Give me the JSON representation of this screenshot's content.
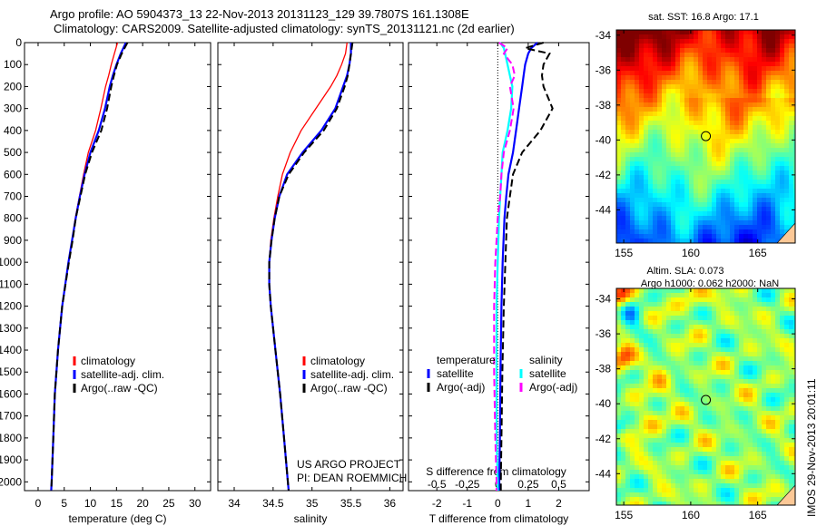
{
  "title_line1": "Argo profile: AO 5904373_13 22-Nov-2013 20131123_129 39.7807S 161.1308E",
  "title_line2": "Climatology: CARS2009. Satellite-adjusted climatology: synTS_20131121.nc (2d earlier)",
  "credit_line1": "US ARGO PROJECT",
  "credit_line2": "PI: DEAN ROEMMICH",
  "imos_stamp": "IMOS 29-Nov-2013 20:01:11",
  "colors": {
    "climatology": "#ff0000",
    "satellite": "#0000ff",
    "argo": "#000000",
    "s_satellite": "#00ffff",
    "s_argo": "#ff00ff",
    "land": "#fcc896"
  },
  "chart_data": [
    {
      "type": "line",
      "name": "temperature",
      "xlabel": "temperature (deg C)",
      "ylabel": "",
      "xlim": [
        -2.6,
        33
      ],
      "ylim": [
        2040,
        0
      ],
      "xticks": [
        "0",
        "5",
        "10",
        "15",
        "20",
        "25",
        "30"
      ],
      "yticks": [
        "0",
        "100",
        "200",
        "300",
        "400",
        "500",
        "600",
        "700",
        "800",
        "900",
        "1000",
        "1100",
        "1200",
        "1300",
        "1400",
        "1500",
        "1600",
        "1700",
        "1800",
        "1900",
        "2000"
      ],
      "legend": [
        "climatology",
        "satellite-adj. clim.",
        "Argo(..raw -QC)"
      ],
      "depth": [
        0,
        50,
        100,
        150,
        200,
        300,
        400,
        500,
        600,
        700,
        800,
        900,
        1000,
        1200,
        1400,
        1600,
        1800,
        2000,
        2040
      ],
      "series": [
        {
          "name": "climatology",
          "values": [
            15.2,
            14.6,
            14.0,
            13.5,
            12.9,
            12.0,
            11.0,
            9.6,
            8.7,
            7.9,
            7.1,
            6.5,
            5.8,
            4.6,
            3.8,
            3.2,
            2.9,
            2.6,
            2.5
          ]
        },
        {
          "name": "satellite-adj. clim.",
          "values": [
            16.8,
            15.8,
            15.0,
            14.3,
            13.7,
            12.8,
            11.6,
            10.0,
            8.9,
            8.0,
            7.2,
            6.5,
            5.8,
            4.6,
            3.8,
            3.2,
            2.9,
            2.6,
            2.5
          ]
        },
        {
          "name": "Argo(..raw -QC)",
          "values": [
            17.1,
            16.0,
            15.1,
            14.5,
            14.0,
            13.2,
            12.1,
            10.3,
            9.0,
            8.1,
            7.2,
            6.6,
            5.9,
            4.6,
            3.8,
            3.2,
            2.9,
            2.6,
            2.5
          ]
        }
      ]
    },
    {
      "type": "line",
      "name": "salinity",
      "xlabel": "salinity",
      "ylabel": "",
      "xlim": [
        33.79,
        36.17
      ],
      "ylim": [
        2040,
        0
      ],
      "xticks": [
        "34",
        "34.5",
        "35",
        "35.5",
        "36"
      ],
      "legend": [
        "climatology",
        "satellite-adj. clim.",
        "Argo(..raw -QC)"
      ],
      "depth": [
        0,
        50,
        100,
        150,
        200,
        300,
        400,
        500,
        600,
        700,
        800,
        900,
        1000,
        1100,
        1200,
        1400,
        1600,
        1800,
        2000,
        2040
      ],
      "series": [
        {
          "name": "climatology",
          "values": [
            35.45,
            35.43,
            35.38,
            35.32,
            35.24,
            35.05,
            34.86,
            34.72,
            34.62,
            34.56,
            34.51,
            34.47,
            34.45,
            34.45,
            34.47,
            34.53,
            34.59,
            34.64,
            34.69,
            34.7
          ]
        },
        {
          "name": "satellite-adj. clim.",
          "values": [
            35.5,
            35.5,
            35.48,
            35.45,
            35.4,
            35.3,
            35.12,
            34.88,
            34.68,
            34.58,
            34.52,
            34.48,
            34.45,
            34.45,
            34.47,
            34.53,
            34.59,
            34.64,
            34.69,
            34.7
          ]
        },
        {
          "name": "Argo(..raw -QC)",
          "values": [
            35.52,
            35.5,
            35.48,
            35.46,
            35.42,
            35.32,
            35.15,
            34.9,
            34.7,
            34.58,
            34.52,
            34.48,
            34.45,
            34.45,
            34.47,
            34.53,
            34.59,
            34.64,
            34.69,
            34.7
          ]
        }
      ]
    },
    {
      "type": "line",
      "name": "difference",
      "xlabel": "T difference from climatology",
      "x2label": "S difference from climatology",
      "xlim": [
        -2.93,
        3.0
      ],
      "ylim": [
        2040,
        0
      ],
      "xticks": [
        "-2",
        "-1",
        "0",
        "1",
        "2"
      ],
      "x2ticks": [
        "-0.5",
        "-0.25",
        "0",
        "0.25",
        "0.5"
      ],
      "legend_headers": [
        "temperature",
        "salinity"
      ],
      "legend": [
        "satellite",
        "Argo(-adj)",
        "satellite",
        "Argo(-adj)"
      ],
      "depth": [
        0,
        25,
        50,
        100,
        150,
        200,
        300,
        400,
        500,
        600,
        700,
        800,
        1000,
        1200,
        1500,
        1800,
        2000,
        2040
      ],
      "series": [
        {
          "name": "T satellite",
          "axis": "T",
          "values": [
            1.3,
            1.1,
            1.0,
            0.9,
            0.85,
            0.8,
            0.7,
            0.6,
            0.5,
            0.35,
            0.28,
            0.22,
            0.16,
            0.12,
            0.09,
            0.07,
            0.05,
            0.05
          ]
        },
        {
          "name": "T Argo(-adj)",
          "axis": "T",
          "values": [
            1.5,
            0.9,
            1.7,
            1.5,
            1.45,
            1.5,
            1.8,
            1.4,
            0.8,
            0.5,
            0.4,
            0.3,
            0.25,
            0.2,
            0.15,
            0.12,
            0.1,
            0.1
          ]
        },
        {
          "name": "S satellite",
          "axis": "S",
          "values": [
            0.02,
            0.05,
            0.06,
            0.08,
            0.1,
            0.12,
            0.11,
            0.08,
            0.04,
            0.03,
            0.02,
            0.01,
            0.0,
            -0.01,
            -0.01,
            -0.01,
            0.0,
            0.0
          ]
        },
        {
          "name": "S Argo(-adj)",
          "axis": "S",
          "values": [
            0.01,
            0.08,
            0.05,
            0.12,
            0.14,
            0.1,
            0.13,
            0.1,
            0.05,
            0.03,
            0.02,
            0.0,
            -0.02,
            -0.03,
            -0.03,
            -0.02,
            -0.01,
            -0.01
          ]
        }
      ]
    },
    {
      "type": "heatmap",
      "name": "sst-map",
      "title": "sat. SST: 16.8 Argo: 17.1",
      "lon": [
        154.45,
        167.8
      ],
      "lat": [
        -45.9,
        -33.7
      ],
      "xticks": [
        "155",
        "160",
        "165"
      ],
      "yticks": [
        "-34",
        "-36",
        "-38",
        "-40",
        "-42",
        "-44"
      ],
      "argo_position": [
        161.13,
        -39.78
      ]
    },
    {
      "type": "heatmap",
      "name": "sla-map",
      "title": "Altim. SLA: 0.073",
      "subtitle": "Argo h1000: 0.062 h2000: NaN",
      "lon": [
        154.45,
        167.8
      ],
      "lat": [
        -45.8,
        -33.4
      ],
      "xticks": [
        "155",
        "160",
        "165"
      ],
      "yticks": [
        "-34",
        "-36",
        "-38",
        "-40",
        "-42",
        "-44"
      ],
      "argo_position": [
        161.13,
        -39.78
      ]
    }
  ]
}
